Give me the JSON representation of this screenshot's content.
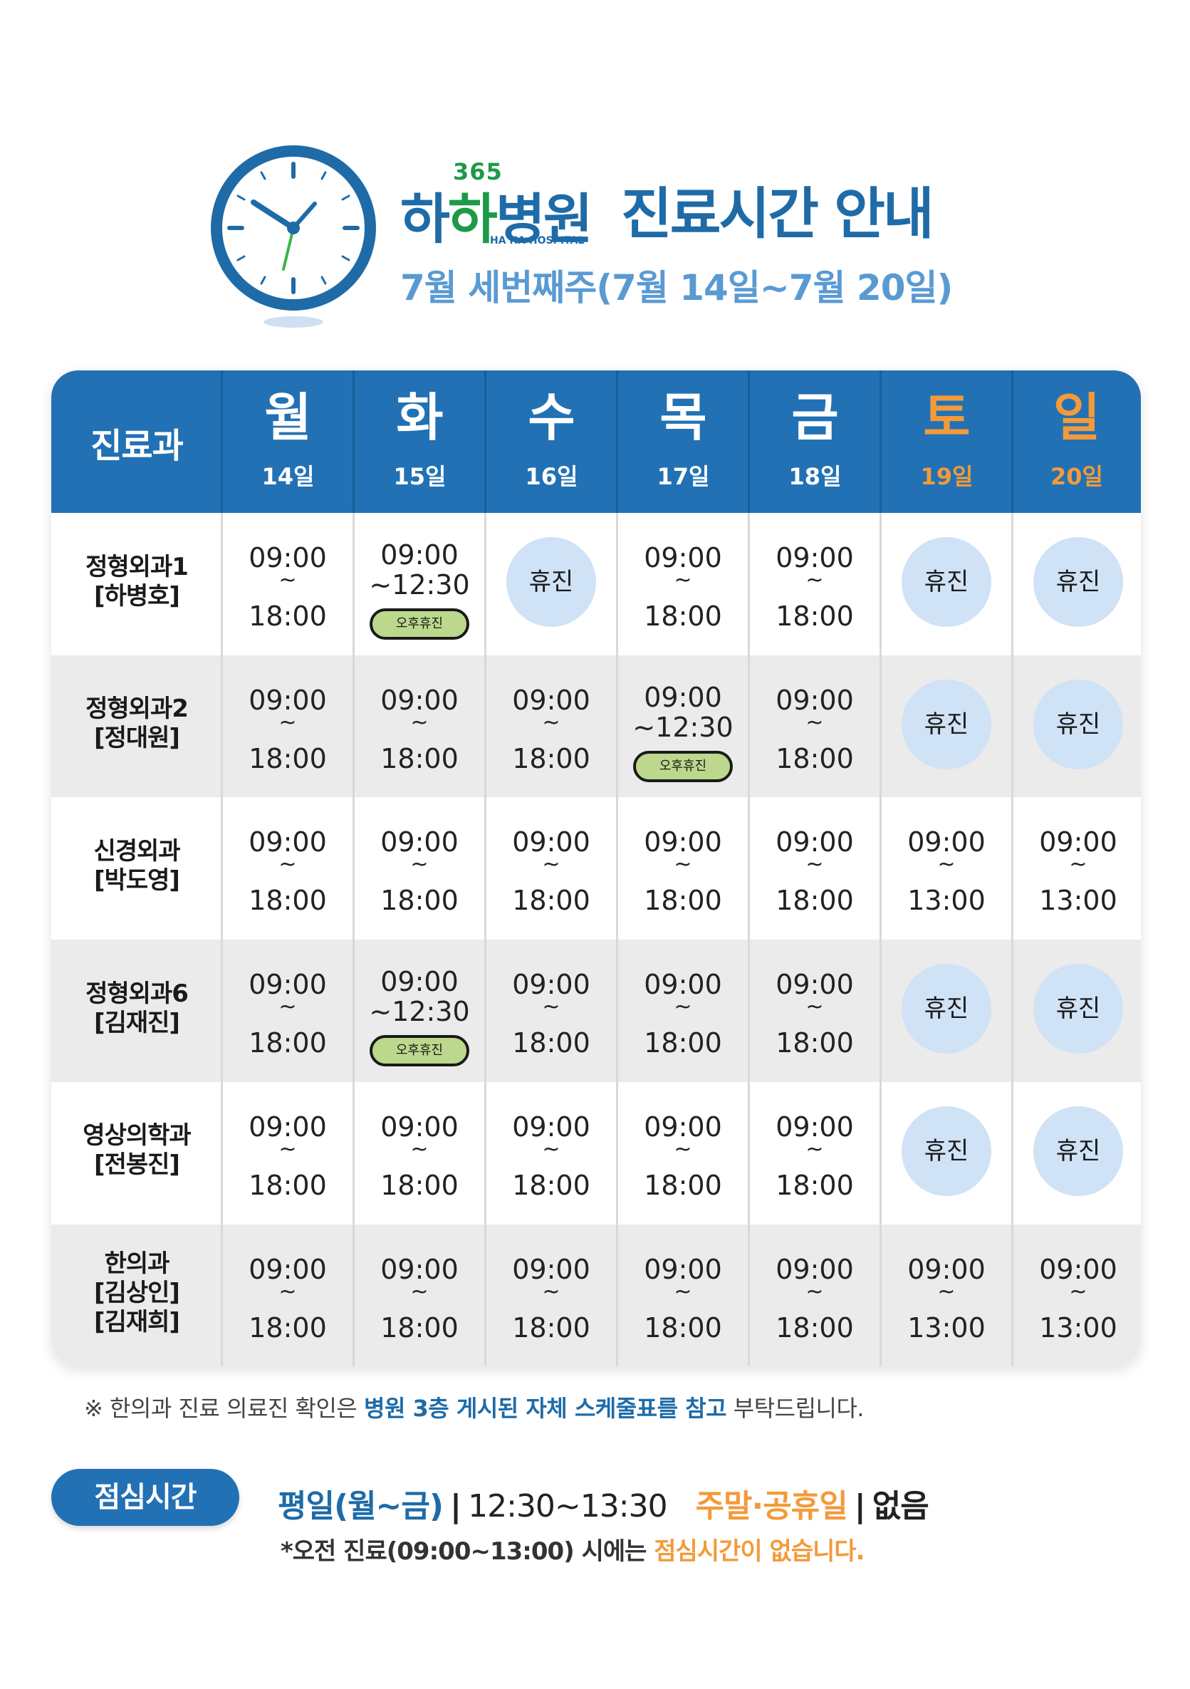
{
  "header": {
    "logo_365": "365",
    "logo_name_1": "하",
    "logo_name_2": "하",
    "logo_name_3": "병원",
    "logo_en": "HA HA HOSPITAL",
    "title": "진료시간 안내",
    "subtitle": "7월 세번째주(7월 14일~7월 20일)"
  },
  "table": {
    "dept_header": "진료과",
    "days": [
      {
        "weekday": "월",
        "date": "14일",
        "weekend": false
      },
      {
        "weekday": "화",
        "date": "15일",
        "weekend": false
      },
      {
        "weekday": "수",
        "date": "16일",
        "weekend": false
      },
      {
        "weekday": "목",
        "date": "17일",
        "weekend": false
      },
      {
        "weekday": "금",
        "date": "18일",
        "weekend": false
      },
      {
        "weekday": "토",
        "date": "19일",
        "weekend": true
      },
      {
        "weekday": "일",
        "date": "20일",
        "weekend": true
      }
    ],
    "rows": [
      {
        "dept": [
          "정형외과1",
          "[하병호]"
        ],
        "cells": [
          {
            "type": "time",
            "start": "09:00",
            "sep": "~",
            "end": "18:00"
          },
          {
            "type": "half",
            "start": "09:00",
            "end": "~12:30",
            "badge": "오후휴진"
          },
          {
            "type": "off",
            "label": "휴진"
          },
          {
            "type": "time",
            "start": "09:00",
            "sep": "~",
            "end": "18:00"
          },
          {
            "type": "time",
            "start": "09:00",
            "sep": "~",
            "end": "18:00"
          },
          {
            "type": "off",
            "label": "휴진"
          },
          {
            "type": "off",
            "label": "휴진"
          }
        ]
      },
      {
        "dept": [
          "정형외과2",
          "[정대원]"
        ],
        "cells": [
          {
            "type": "time",
            "start": "09:00",
            "sep": "~",
            "end": "18:00"
          },
          {
            "type": "time",
            "start": "09:00",
            "sep": "~",
            "end": "18:00"
          },
          {
            "type": "time",
            "start": "09:00",
            "sep": "~",
            "end": "18:00"
          },
          {
            "type": "half",
            "start": "09:00",
            "end": "~12:30",
            "badge": "오후휴진"
          },
          {
            "type": "time",
            "start": "09:00",
            "sep": "~",
            "end": "18:00"
          },
          {
            "type": "off",
            "label": "휴진"
          },
          {
            "type": "off",
            "label": "휴진"
          }
        ]
      },
      {
        "dept": [
          "신경외과",
          "[박도영]"
        ],
        "cells": [
          {
            "type": "time",
            "start": "09:00",
            "sep": "~",
            "end": "18:00"
          },
          {
            "type": "time",
            "start": "09:00",
            "sep": "~",
            "end": "18:00"
          },
          {
            "type": "time",
            "start": "09:00",
            "sep": "~",
            "end": "18:00"
          },
          {
            "type": "time",
            "start": "09:00",
            "sep": "~",
            "end": "18:00"
          },
          {
            "type": "time",
            "start": "09:00",
            "sep": "~",
            "end": "18:00"
          },
          {
            "type": "time",
            "start": "09:00",
            "sep": "~",
            "end": "13:00"
          },
          {
            "type": "time",
            "start": "09:00",
            "sep": "~",
            "end": "13:00"
          }
        ]
      },
      {
        "dept": [
          "정형외과6",
          "[김재진]"
        ],
        "cells": [
          {
            "type": "time",
            "start": "09:00",
            "sep": "~",
            "end": "18:00"
          },
          {
            "type": "half",
            "start": "09:00",
            "end": "~12:30",
            "badge": "오후휴진"
          },
          {
            "type": "time",
            "start": "09:00",
            "sep": "~",
            "end": "18:00"
          },
          {
            "type": "time",
            "start": "09:00",
            "sep": "~",
            "end": "18:00"
          },
          {
            "type": "time",
            "start": "09:00",
            "sep": "~",
            "end": "18:00"
          },
          {
            "type": "off",
            "label": "휴진"
          },
          {
            "type": "off",
            "label": "휴진"
          }
        ]
      },
      {
        "dept": [
          "영상의학과",
          "[전봉진]"
        ],
        "cells": [
          {
            "type": "time",
            "start": "09:00",
            "sep": "~",
            "end": "18:00"
          },
          {
            "type": "time",
            "start": "09:00",
            "sep": "~",
            "end": "18:00"
          },
          {
            "type": "time",
            "start": "09:00",
            "sep": "~",
            "end": "18:00"
          },
          {
            "type": "time",
            "start": "09:00",
            "sep": "~",
            "end": "18:00"
          },
          {
            "type": "time",
            "start": "09:00",
            "sep": "~",
            "end": "18:00"
          },
          {
            "type": "off",
            "label": "휴진"
          },
          {
            "type": "off",
            "label": "휴진"
          }
        ]
      },
      {
        "dept": [
          "한의과",
          "[김상인]",
          "[김재희]"
        ],
        "cells": [
          {
            "type": "time",
            "start": "09:00",
            "sep": "~",
            "end": "18:00"
          },
          {
            "type": "time",
            "start": "09:00",
            "sep": "~",
            "end": "18:00"
          },
          {
            "type": "time",
            "start": "09:00",
            "sep": "~",
            "end": "18:00"
          },
          {
            "type": "time",
            "start": "09:00",
            "sep": "~",
            "end": "18:00"
          },
          {
            "type": "time",
            "start": "09:00",
            "sep": "~",
            "end": "18:00"
          },
          {
            "type": "time",
            "start": "09:00",
            "sep": "~",
            "end": "13:00"
          },
          {
            "type": "time",
            "start": "09:00",
            "sep": "~",
            "end": "13:00"
          }
        ]
      }
    ]
  },
  "note": {
    "prefix": "※ 한의과 진료 의료진 확인은 ",
    "highlight": "병원 3층 게시된 자체 스케줄표를 참고",
    "suffix": " 부탁드립니다."
  },
  "lunch": {
    "badge": "점심시간",
    "weekday_label": "평일(월~금)",
    "bar": "|",
    "weekday_time": "12:30~13:30",
    "weekend_label": "주말·공휴일",
    "weekend_value": "없음",
    "sub_prefix": "*오전 진료(09:00~13:00) 시에는 ",
    "sub_highlight": "점심시간이 없습니다."
  },
  "colors": {
    "primary": "#2271b4",
    "accent_green": "#1d9a48",
    "weekend_orange": "#f39a3a",
    "off_circle": "#cfe2f6",
    "pm_badge": "#bcd88c"
  }
}
